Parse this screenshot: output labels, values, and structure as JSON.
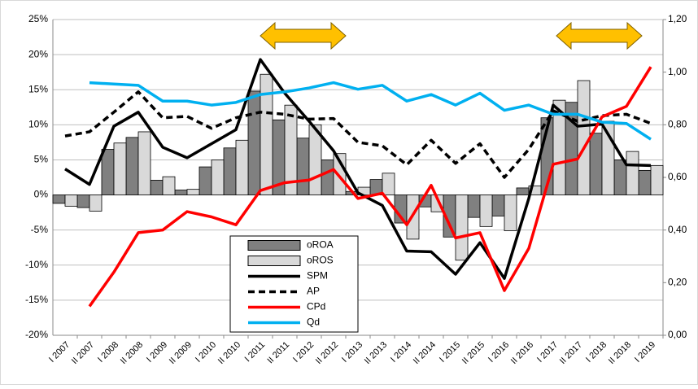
{
  "chart_data": {
    "type": "bar",
    "categories": [
      "I 2007",
      "II 2007",
      "I 2008",
      "II 2008",
      "I 2009",
      "II 2009",
      "I 2010",
      "II 2010",
      "I 2011",
      "II 2011",
      "I 2012",
      "II 2012",
      "I 2013",
      "II 2013",
      "I 2014",
      "II 2014",
      "I 2015",
      "II 2015",
      "I 2016",
      "II 2016",
      "I 2017",
      "II 2017",
      "I 2018",
      "II 2018",
      "I 2019"
    ],
    "series": [
      {
        "name": "oROA",
        "type": "bar",
        "color": "#808080",
        "values": [
          -1.2,
          -1.8,
          6.5,
          8.2,
          2.1,
          0.7,
          4.0,
          6.7,
          14.8,
          10.7,
          8.1,
          5.0,
          0.5,
          2.2,
          -4.0,
          -1.7,
          -6.0,
          -3.2,
          -3.0,
          1.0,
          11.0,
          13.2,
          8.8,
          5.0,
          3.5
        ]
      },
      {
        "name": "oROS",
        "type": "bar",
        "color": "#d9d9d9",
        "values": [
          -1.6,
          -2.3,
          7.4,
          9.0,
          2.6,
          0.8,
          5.0,
          7.8,
          17.2,
          12.8,
          10.0,
          5.9,
          1.1,
          3.1,
          -6.3,
          -2.4,
          -9.3,
          -4.5,
          -5.1,
          1.3,
          13.5,
          16.3,
          10.5,
          6.2,
          4.2
        ]
      },
      {
        "name": "SPM",
        "type": "line",
        "color": "#000000",
        "values": [
          3.7,
          1.5,
          9.8,
          11.8,
          6.8,
          5.3,
          7.3,
          9.3,
          19.3,
          14.5,
          10.5,
          6.3,
          0.3,
          -1.5,
          -8.0,
          -8.1,
          -11.3,
          -6.8,
          -11.9,
          -0.5,
          12.8,
          9.8,
          10.1,
          4.3,
          4.2
        ]
      },
      {
        "name": "AP",
        "type": "dashed",
        "color": "#000000",
        "values": [
          8.4,
          9.0,
          11.8,
          14.7,
          11.0,
          11.2,
          9.5,
          11.0,
          11.8,
          11.5,
          10.8,
          10.9,
          7.5,
          7.0,
          4.3,
          7.8,
          4.5,
          7.3,
          2.5,
          6.5,
          12.0,
          10.5,
          11.3,
          11.5,
          10.2
        ]
      },
      {
        "name": "CPd",
        "type": "line",
        "axis": "y2",
        "color": "#ff0000",
        "values": [
          null,
          0.11,
          0.24,
          0.39,
          0.4,
          0.47,
          0.45,
          0.42,
          0.55,
          0.58,
          0.59,
          0.63,
          0.52,
          0.54,
          0.42,
          0.57,
          0.37,
          0.39,
          0.17,
          0.33,
          0.65,
          0.67,
          0.83,
          0.87,
          1.02
        ]
      },
      {
        "name": "Qd",
        "type": "line",
        "axis": "y2",
        "color": "#00b0f0",
        "values": [
          null,
          0.96,
          0.955,
          0.95,
          0.89,
          0.89,
          0.875,
          0.885,
          0.915,
          0.925,
          0.94,
          0.96,
          0.935,
          0.95,
          0.89,
          0.915,
          0.875,
          0.92,
          0.855,
          0.875,
          0.84,
          0.84,
          0.81,
          0.805,
          0.745
        ]
      }
    ],
    "ylim": [
      -20,
      25
    ],
    "yticks": [
      {
        "value": -20,
        "label": "-20%"
      },
      {
        "value": -15,
        "label": "-15%"
      },
      {
        "value": -10,
        "label": "-10%"
      },
      {
        "value": -5,
        "label": "-5%"
      },
      {
        "value": 0,
        "label": "0%"
      },
      {
        "value": 5,
        "label": "5%"
      },
      {
        "value": 10,
        "label": "10%"
      },
      {
        "value": 15,
        "label": "15%"
      },
      {
        "value": 20,
        "label": "20%"
      },
      {
        "value": 25,
        "label": "25%"
      }
    ],
    "y2lim": [
      0,
      1.2
    ],
    "y2ticks": [
      {
        "value": 0,
        "label": "0,00"
      },
      {
        "value": 0.2,
        "label": "0,20"
      },
      {
        "value": 0.4,
        "label": "0,40"
      },
      {
        "value": 0.6,
        "label": "0,60"
      },
      {
        "value": 0.8,
        "label": "0,80"
      },
      {
        "value": 1.0,
        "label": "1,00"
      },
      {
        "value": 1.2,
        "label": "1,20"
      }
    ],
    "grid": true
  }
}
